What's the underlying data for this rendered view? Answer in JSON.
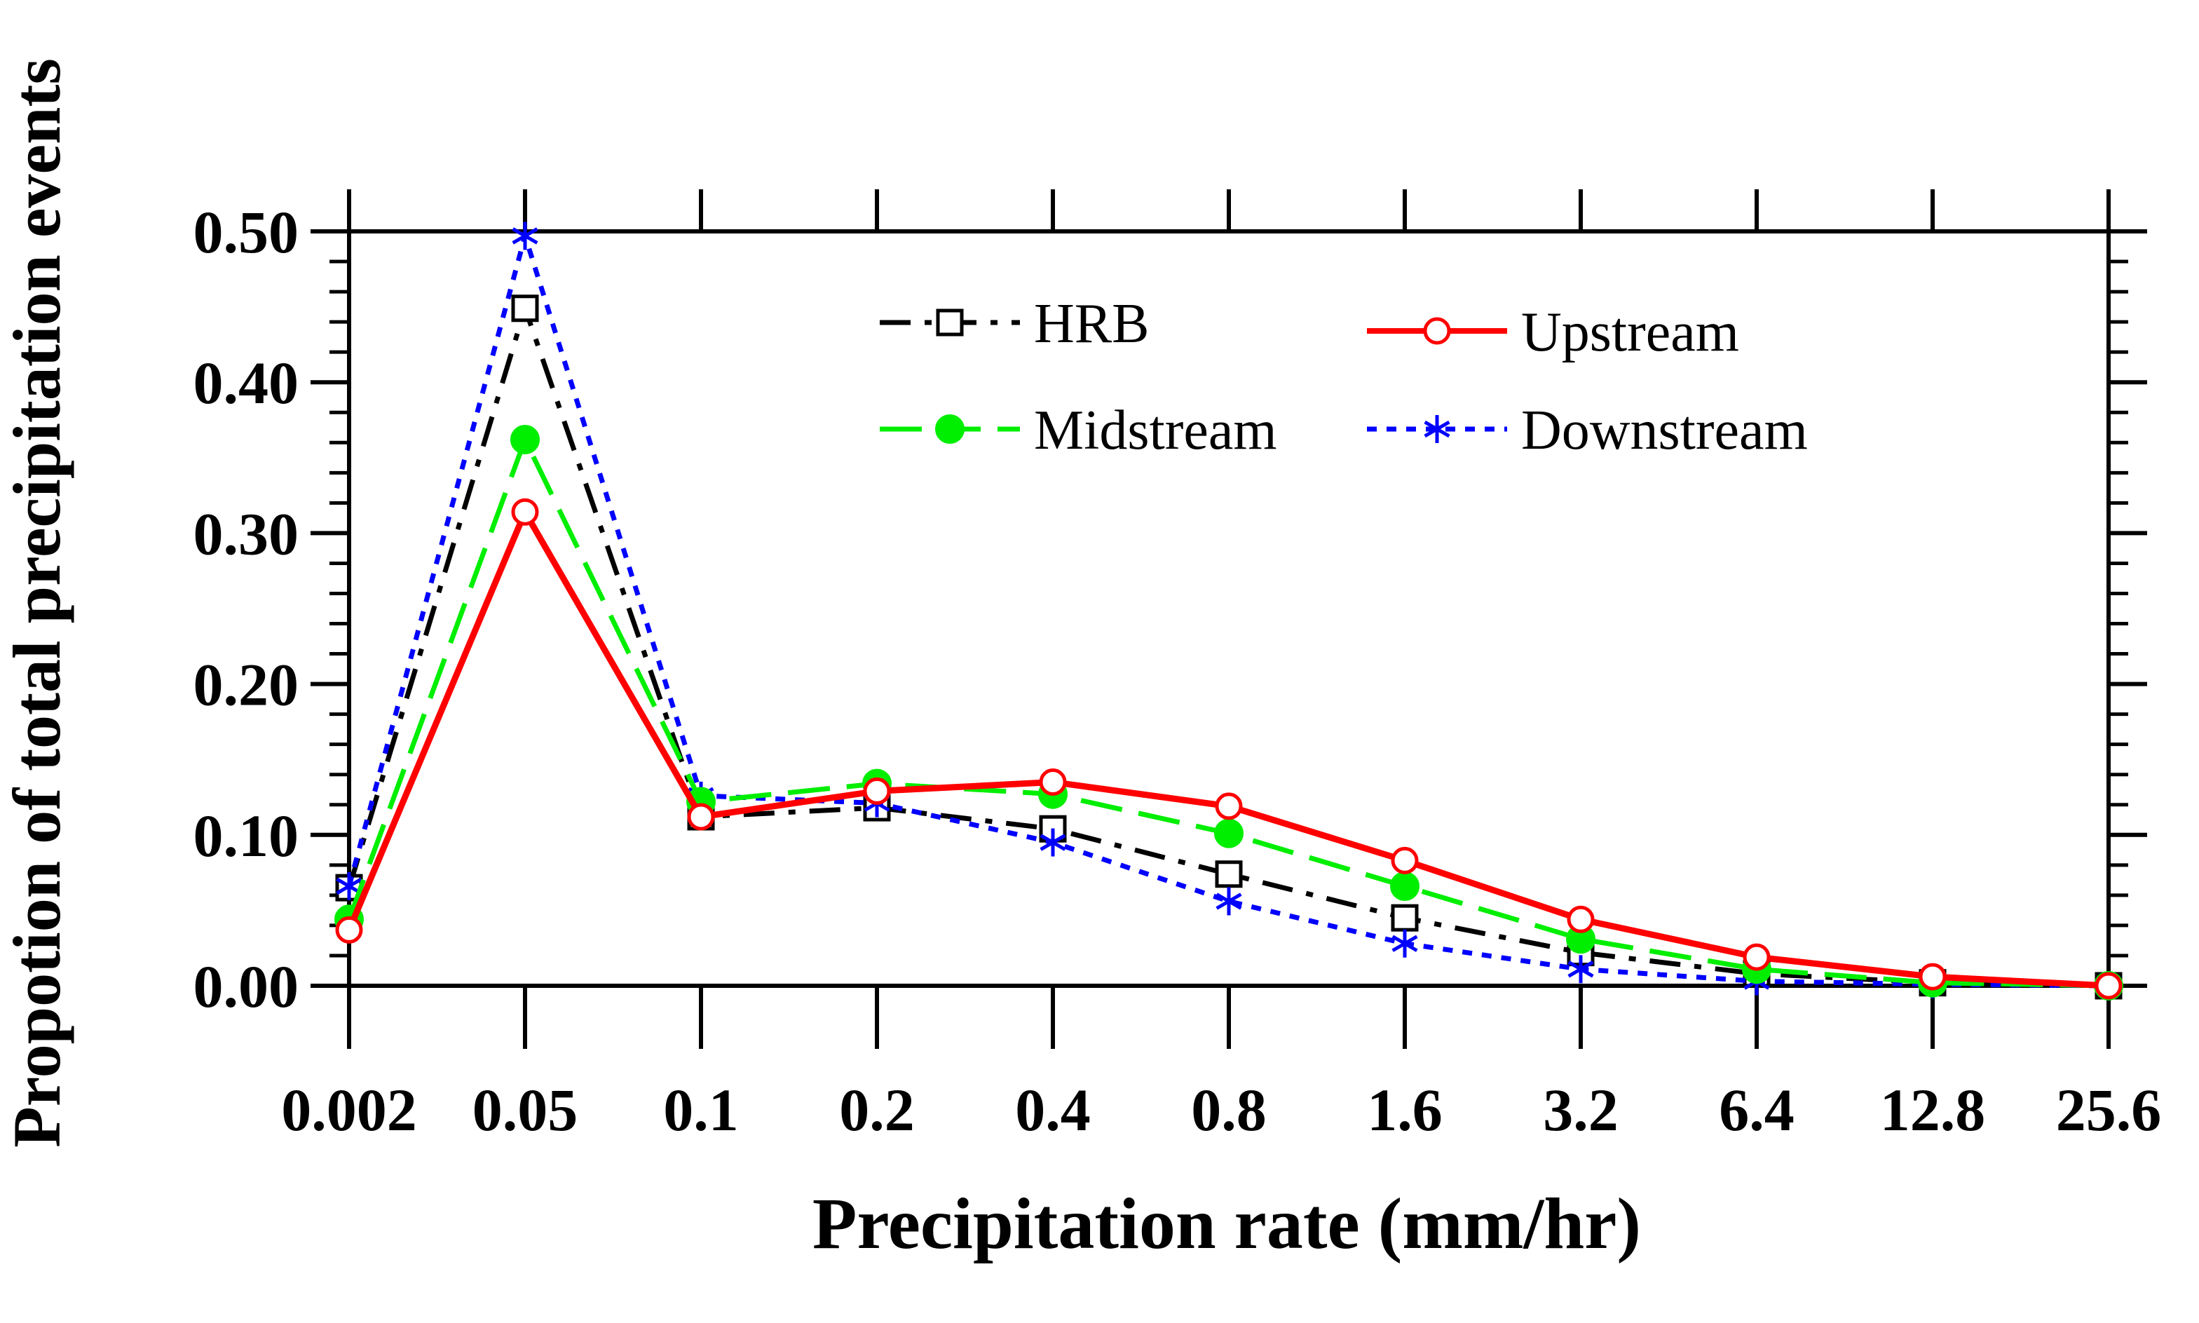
{
  "chart_data": {
    "type": "line",
    "title": "",
    "xlabel": "Precipitation rate (mm/hr)",
    "ylabel": "Propotion of total precipitation events",
    "categories": [
      "0.002",
      "0.05",
      "0.1",
      "0.2",
      "0.4",
      "0.8",
      "1.6",
      "3.2",
      "6.4",
      "12.8",
      "25.6"
    ],
    "ylim": [
      0,
      0.5
    ],
    "yticks": [
      "0.00",
      "0.10",
      "0.20",
      "0.30",
      "0.40",
      "0.50"
    ],
    "grid": false,
    "legend_position": "top-center",
    "series": [
      {
        "name": "HRB",
        "color": "#000000",
        "marker": "square",
        "line_style": "dash-dot",
        "values": [
          0.065,
          0.449,
          0.112,
          0.118,
          0.104,
          0.074,
          0.045,
          0.022,
          0.008,
          0.002,
          0.0
        ]
      },
      {
        "name": "Upstream",
        "color": "#ff0000",
        "marker": "open-circle",
        "line_style": "solid",
        "values": [
          0.037,
          0.314,
          0.112,
          0.129,
          0.135,
          0.119,
          0.083,
          0.044,
          0.019,
          0.006,
          0.0
        ]
      },
      {
        "name": "Midstream",
        "color": "#00ee00",
        "marker": "filled-circle",
        "line_style": "dashed",
        "values": [
          0.044,
          0.362,
          0.122,
          0.134,
          0.127,
          0.101,
          0.066,
          0.031,
          0.011,
          0.002,
          0.0
        ]
      },
      {
        "name": "Downstream",
        "color": "#0000ff",
        "marker": "asterisk",
        "line_style": "dotted",
        "values": [
          0.066,
          0.497,
          0.126,
          0.121,
          0.095,
          0.056,
          0.028,
          0.011,
          0.003,
          0.001,
          0.0
        ]
      }
    ]
  }
}
